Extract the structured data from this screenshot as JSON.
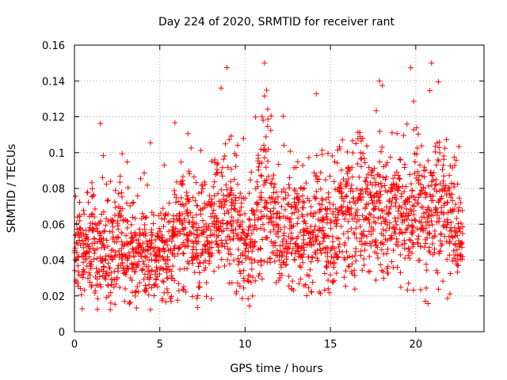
{
  "chart_data": {
    "type": "scatter",
    "title": "Day 224 of 2020, SRMTID for receiver rant",
    "xlabel": "GPS time / hours",
    "ylabel": "SRMTID / TECUs",
    "xlim": [
      0,
      24
    ],
    "ylim": [
      0,
      0.16
    ],
    "xticks": [
      0,
      5,
      10,
      15,
      20
    ],
    "yticks": [
      0,
      0.02,
      0.04,
      0.06,
      0.08,
      0.1,
      0.12,
      0.14,
      0.16
    ],
    "xtick_labels": [
      "0",
      "5",
      "10",
      "15",
      "20"
    ],
    "ytick_labels": [
      "0",
      "0.02",
      "0.04",
      "0.06",
      "0.08",
      "0.1",
      "0.12",
      "0.14",
      "0.16"
    ],
    "grid": true,
    "marker": "+",
    "color": "#ff0000",
    "series": [
      {
        "name": "SRMTID",
        "x": [
          0.0,
          0.2,
          0.4,
          0.6,
          0.8,
          1.0,
          1.2,
          1.4,
          1.6,
          1.8,
          2.0,
          2.2,
          2.4,
          2.6,
          2.8,
          3.0,
          3.2,
          3.4,
          3.6,
          3.8,
          4.0,
          4.2,
          4.4,
          4.6,
          4.8,
          5.0,
          5.2,
          5.4,
          5.6,
          5.8,
          6.0,
          6.2,
          6.4,
          6.6,
          6.8,
          7.0,
          7.2,
          7.4,
          7.6,
          7.8,
          8.0,
          8.2,
          8.4,
          8.6,
          8.8,
          9.0,
          9.2,
          9.4,
          9.6,
          9.8,
          10.0,
          10.2,
          10.4,
          10.6,
          10.8,
          11.0,
          11.2,
          11.4,
          11.6,
          11.8,
          12.0,
          12.2,
          12.4,
          12.6,
          12.8,
          13.0,
          13.2,
          13.4,
          13.6,
          13.8,
          14.0,
          14.2,
          14.4,
          14.6,
          14.8,
          15.0,
          15.2,
          15.4,
          15.6,
          15.8,
          16.0,
          16.2,
          16.4,
          16.6,
          16.8,
          17.0,
          17.2,
          17.4,
          17.6,
          17.8,
          18.0,
          18.2,
          18.4,
          18.6,
          18.8,
          19.0,
          19.2,
          19.4,
          19.6,
          19.8,
          20.0,
          20.2,
          20.4,
          20.6,
          20.8,
          21.0,
          21.2,
          21.4,
          21.6,
          21.8,
          22.0,
          22.2,
          22.4,
          22.6
        ],
        "y": [
          0.045,
          0.052,
          0.04,
          0.048,
          0.042,
          0.05,
          0.038,
          0.046,
          0.044,
          0.051,
          0.036,
          0.049,
          0.043,
          0.055,
          0.047,
          0.041,
          0.039,
          0.045,
          0.037,
          0.044,
          0.042,
          0.04,
          0.046,
          0.035,
          0.048,
          0.043,
          0.05,
          0.045,
          0.041,
          0.052,
          0.047,
          0.058,
          0.044,
          0.06,
          0.049,
          0.055,
          0.046,
          0.062,
          0.05,
          0.058,
          0.054,
          0.066,
          0.061,
          0.07,
          0.065,
          0.068,
          0.057,
          0.06,
          0.052,
          0.049,
          0.047,
          0.055,
          0.05,
          0.072,
          0.065,
          0.085,
          0.09,
          0.075,
          0.062,
          0.058,
          0.054,
          0.06,
          0.048,
          0.056,
          0.062,
          0.058,
          0.052,
          0.05,
          0.055,
          0.046,
          0.06,
          0.053,
          0.057,
          0.05,
          0.056,
          0.048,
          0.062,
          0.066,
          0.07,
          0.064,
          0.072,
          0.068,
          0.06,
          0.074,
          0.066,
          0.07,
          0.063,
          0.068,
          0.058,
          0.072,
          0.055,
          0.065,
          0.06,
          0.074,
          0.068,
          0.062,
          0.07,
          0.058,
          0.066,
          0.072,
          0.075,
          0.068,
          0.062,
          0.058,
          0.07,
          0.06,
          0.066,
          0.063,
          0.071,
          0.058,
          0.062,
          0.06,
          0.054,
          0.05
        ],
        "spread": [
          0.012,
          0.012,
          0.012,
          0.013,
          0.013,
          0.013,
          0.013,
          0.013,
          0.014,
          0.014,
          0.013,
          0.014,
          0.014,
          0.015,
          0.014,
          0.014,
          0.013,
          0.013,
          0.012,
          0.012,
          0.013,
          0.012,
          0.013,
          0.012,
          0.012,
          0.012,
          0.014,
          0.014,
          0.014,
          0.015,
          0.015,
          0.016,
          0.015,
          0.016,
          0.016,
          0.016,
          0.015,
          0.017,
          0.016,
          0.016,
          0.016,
          0.018,
          0.017,
          0.018,
          0.018,
          0.019,
          0.017,
          0.017,
          0.016,
          0.015,
          0.016,
          0.017,
          0.017,
          0.02,
          0.019,
          0.022,
          0.022,
          0.02,
          0.017,
          0.016,
          0.016,
          0.017,
          0.015,
          0.016,
          0.017,
          0.017,
          0.016,
          0.015,
          0.016,
          0.015,
          0.017,
          0.016,
          0.017,
          0.016,
          0.016,
          0.015,
          0.017,
          0.017,
          0.018,
          0.017,
          0.018,
          0.017,
          0.016,
          0.018,
          0.017,
          0.018,
          0.017,
          0.018,
          0.016,
          0.018,
          0.016,
          0.018,
          0.017,
          0.019,
          0.018,
          0.017,
          0.019,
          0.017,
          0.018,
          0.019,
          0.02,
          0.019,
          0.018,
          0.017,
          0.019,
          0.017,
          0.018,
          0.018,
          0.019,
          0.017,
          0.017,
          0.016,
          0.015,
          0.014
        ]
      }
    ],
    "samples_per_step": 20,
    "seed": 224
  }
}
